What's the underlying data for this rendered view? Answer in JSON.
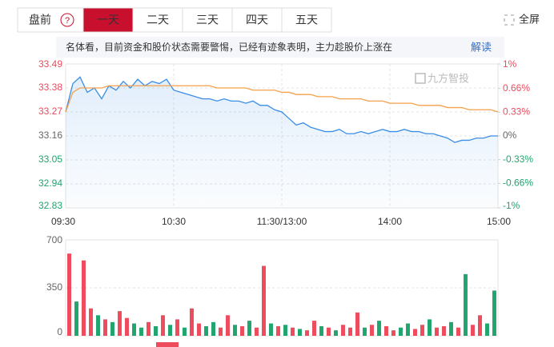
{
  "toolbar": {
    "tabs": [
      "盘前",
      "一天",
      "二天",
      "三天",
      "四天",
      "五天"
    ],
    "help_icon": "?",
    "fullscreen": "全屏"
  },
  "news": {
    "text": "名体看，目前资金和股价状态需要警惕，已经有迹象表明，主力趁股价上涨在",
    "action": "解读"
  },
  "watermark": "九方智投",
  "chart_data": [
    {
      "type": "line",
      "x": [
        0,
        4,
        8,
        12,
        16,
        20,
        24,
        28,
        32,
        36,
        40,
        44,
        48,
        52,
        56,
        60,
        64,
        68,
        72,
        76,
        80,
        84,
        88,
        92,
        96,
        100,
        104,
        108,
        112,
        116,
        120,
        124,
        128,
        132,
        136,
        140,
        144,
        148,
        152,
        156,
        160,
        164,
        168,
        172,
        176,
        180,
        184,
        188,
        192,
        196,
        200,
        204,
        208,
        212,
        216,
        220,
        224,
        228,
        232,
        236,
        240
      ],
      "xlim": [
        0,
        240
      ],
      "xticks": [
        {
          "value": 0,
          "label": "09:30"
        },
        {
          "value": 60,
          "label": "10:30"
        },
        {
          "value": 120,
          "label": "11:30/13:00"
        },
        {
          "value": 180,
          "label": "14:00"
        },
        {
          "value": 240,
          "label": "15:00"
        }
      ],
      "ylim": [
        32.83,
        33.49
      ],
      "yticks": [
        33.49,
        33.38,
        33.27,
        33.16,
        33.05,
        32.94,
        32.83
      ],
      "y2lim": [
        -1,
        1
      ],
      "y2ticks": [
        {
          "value": 1,
          "label": "1%"
        },
        {
          "value": 0.66,
          "label": "0.66%"
        },
        {
          "value": 0.33,
          "label": "0.33%"
        },
        {
          "value": 0,
          "label": "0%"
        },
        {
          "value": -0.33,
          "label": "-0.33%"
        },
        {
          "value": -0.66,
          "label": "-0.66%"
        },
        {
          "value": -1,
          "label": "-1%"
        }
      ],
      "grid": true,
      "series": [
        {
          "color": "#3a8ee6",
          "values": [
            33.27,
            33.4,
            33.43,
            33.36,
            33.38,
            33.33,
            33.39,
            33.37,
            33.41,
            33.38,
            33.42,
            33.39,
            33.41,
            33.4,
            33.42,
            33.37,
            33.36,
            33.35,
            33.34,
            33.33,
            33.33,
            33.32,
            33.33,
            33.32,
            33.32,
            33.31,
            33.32,
            33.3,
            33.3,
            33.28,
            33.27,
            33.24,
            33.21,
            33.22,
            33.2,
            33.19,
            33.18,
            33.18,
            33.19,
            33.17,
            33.17,
            33.18,
            33.17,
            33.18,
            33.19,
            33.18,
            33.18,
            33.19,
            33.18,
            33.18,
            33.17,
            33.17,
            33.16,
            33.15,
            33.13,
            33.14,
            33.14,
            33.15,
            33.15,
            33.16,
            33.16
          ]
        },
        {
          "color": "#f5a04a",
          "values": [
            33.27,
            33.36,
            33.38,
            33.38,
            33.38,
            33.38,
            33.39,
            33.39,
            33.39,
            33.39,
            33.39,
            33.39,
            33.39,
            33.39,
            33.39,
            33.39,
            33.39,
            33.39,
            33.39,
            33.39,
            33.39,
            33.38,
            33.38,
            33.38,
            33.38,
            33.38,
            33.37,
            33.37,
            33.37,
            33.37,
            33.36,
            33.36,
            33.35,
            33.35,
            33.35,
            33.34,
            33.34,
            33.34,
            33.33,
            33.33,
            33.33,
            33.33,
            33.32,
            33.32,
            33.32,
            33.31,
            33.31,
            33.31,
            33.31,
            33.3,
            33.3,
            33.3,
            33.3,
            33.29,
            33.29,
            33.29,
            33.28,
            33.28,
            33.28,
            33.28,
            33.27
          ]
        }
      ]
    },
    {
      "type": "bar",
      "x": [
        2,
        6,
        10,
        14,
        18,
        22,
        26,
        30,
        34,
        38,
        42,
        46,
        50,
        54,
        58,
        62,
        66,
        70,
        74,
        78,
        82,
        86,
        90,
        94,
        98,
        102,
        106,
        110,
        114,
        118,
        122,
        126,
        130,
        134,
        138,
        142,
        146,
        150,
        154,
        158,
        162,
        166,
        170,
        174,
        178,
        182,
        186,
        190,
        194,
        198,
        202,
        206,
        210,
        214,
        218,
        222,
        226,
        230,
        234,
        238
      ],
      "xlim": [
        0,
        240
      ],
      "ylim": [
        0,
        700
      ],
      "yticks": [
        0,
        350,
        700
      ],
      "values": [
        600,
        250,
        550,
        200,
        150,
        120,
        100,
        180,
        130,
        90,
        60,
        100,
        70,
        150,
        80,
        120,
        60,
        200,
        90,
        70,
        100,
        60,
        150,
        80,
        70,
        110,
        60,
        510,
        90,
        70,
        80,
        60,
        50,
        40,
        110,
        70,
        60,
        40,
        80,
        60,
        170,
        60,
        80,
        110,
        70,
        40,
        60,
        90,
        50,
        80,
        120,
        60,
        70,
        100,
        60,
        450,
        80,
        150,
        90,
        330
      ],
      "colors": [
        "#ee4b5d",
        "#1fa56d",
        "#ee4b5d",
        "#ee4b5d",
        "#1fa56d",
        "#ee4b5d",
        "#1fa56d",
        "#ee4b5d",
        "#ee4b5d",
        "#1fa56d",
        "#1fa56d",
        "#ee4b5d",
        "#1fa56d",
        "#ee4b5d",
        "#1fa56d",
        "#ee4b5d",
        "#1fa56d",
        "#ee4b5d",
        "#ee4b5d",
        "#1fa56d",
        "#1fa56d",
        "#ee4b5d",
        "#ee4b5d",
        "#1fa56d",
        "#ee4b5d",
        "#1fa56d",
        "#ee4b5d",
        "#ee4b5d",
        "#1fa56d",
        "#ee4b5d",
        "#1fa56d",
        "#ee4b5d",
        "#1fa56d",
        "#ee4b5d",
        "#ee4b5d",
        "#1fa56d",
        "#ee4b5d",
        "#1fa56d",
        "#ee4b5d",
        "#ee4b5d",
        "#ee4b5d",
        "#1fa56d",
        "#ee4b5d",
        "#1fa56d",
        "#ee4b5d",
        "#ee4b5d",
        "#1fa56d",
        "#1fa56d",
        "#ee4b5d",
        "#ee4b5d",
        "#1fa56d",
        "#ee4b5d",
        "#ee4b5d",
        "#1fa56d",
        "#ee4b5d",
        "#1fa56d",
        "#ee4b5d",
        "#ee4b5d",
        "#1fa56d",
        "#1fa56d"
      ]
    }
  ]
}
